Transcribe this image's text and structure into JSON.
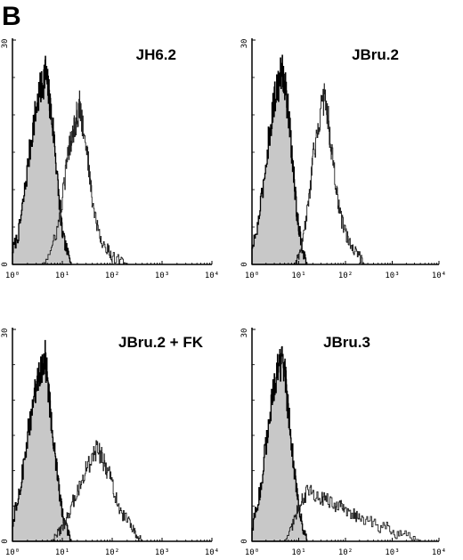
{
  "figure": {
    "panel_letter": "B"
  },
  "chart_data": [
    {
      "type": "area",
      "title": "JH6.2",
      "x_scale": "log",
      "xlim": [
        1,
        10000
      ],
      "ylim": [
        0,
        30
      ],
      "x_ticks": [
        "10⁰",
        "10¹",
        "10²",
        "10³",
        "10⁴"
      ],
      "y_ticks": [
        "0",
        "30"
      ],
      "grid": false,
      "series": [
        {
          "style": "filled",
          "x": [
            1.0,
            1.3,
            1.6,
            2.0,
            2.5,
            3.0,
            3.5,
            4.0,
            4.5,
            5.0,
            5.5,
            6.0,
            7.0,
            8.0,
            9.0,
            10.0,
            12.0,
            15.0
          ],
          "y": [
            2,
            4,
            8,
            13,
            18,
            21,
            23,
            24,
            26,
            24,
            22,
            20,
            16,
            11,
            7,
            4,
            2,
            0
          ]
        },
        {
          "style": "outline",
          "x": [
            4.0,
            6.0,
            8.0,
            10.0,
            12.0,
            14.0,
            16.0,
            18.0,
            20.0,
            22.0,
            25.0,
            30.0,
            35.0,
            40.0,
            50.0,
            60.0,
            80.0,
            100.0,
            150.0,
            200.0
          ],
          "y": [
            0,
            2,
            5,
            9,
            13,
            16,
            18,
            19,
            20,
            21,
            19,
            16,
            12,
            8,
            5,
            3,
            2,
            1,
            0.5,
            0
          ]
        }
      ]
    },
    {
      "type": "area",
      "title": "JBru.2",
      "x_scale": "log",
      "xlim": [
        1,
        10000
      ],
      "ylim": [
        0,
        30
      ],
      "x_ticks": [
        "10⁰",
        "10¹",
        "10²",
        "10³",
        "10⁴"
      ],
      "y_ticks": [
        "0",
        "30"
      ],
      "grid": false,
      "series": [
        {
          "style": "filled",
          "x": [
            1.0,
            1.3,
            1.6,
            2.0,
            2.5,
            3.0,
            3.5,
            4.0,
            4.5,
            5.0,
            5.5,
            6.0,
            7.0,
            8.0,
            9.0,
            10.0,
            12.0,
            15.0
          ],
          "y": [
            2,
            5,
            9,
            14,
            19,
            22,
            24,
            25,
            26,
            24,
            22,
            20,
            15,
            11,
            7,
            5,
            2,
            0
          ]
        },
        {
          "style": "outline",
          "x": [
            8.0,
            10.0,
            12.0,
            15.0,
            18.0,
            20.0,
            25.0,
            30.0,
            35.0,
            40.0,
            45.0,
            50.0,
            60.0,
            70.0,
            80.0,
            100.0,
            120.0,
            150.0,
            200.0,
            250.0
          ],
          "y": [
            0,
            1,
            3,
            7,
            11,
            14,
            18,
            21,
            22,
            21,
            18,
            15,
            11,
            8,
            6,
            4,
            3,
            2,
            1,
            0
          ]
        }
      ]
    },
    {
      "type": "area",
      "title": "JBru.2 + FK",
      "x_scale": "log",
      "xlim": [
        1,
        10000
      ],
      "ylim": [
        0,
        30
      ],
      "x_ticks": [
        "10⁰",
        "10¹",
        "10²",
        "10³",
        "10⁴"
      ],
      "y_ticks": [
        "0",
        "30"
      ],
      "grid": false,
      "series": [
        {
          "style": "filled",
          "x": [
            1.0,
            1.3,
            1.6,
            2.0,
            2.5,
            3.0,
            3.5,
            4.0,
            4.5,
            5.0,
            5.5,
            6.0,
            7.0,
            8.0,
            9.0,
            10.0,
            12.0,
            15.0
          ],
          "y": [
            3,
            6,
            10,
            15,
            19,
            22,
            24,
            25,
            26,
            23,
            20,
            17,
            13,
            9,
            6,
            4,
            2,
            0
          ]
        },
        {
          "style": "outline",
          "x": [
            6.0,
            8.0,
            10.0,
            12.0,
            15.0,
            20.0,
            25.0,
            30.0,
            40.0,
            50.0,
            60.0,
            70.0,
            80.0,
            100.0,
            120.0,
            150.0,
            200.0,
            250.0,
            300.0,
            400.0
          ],
          "y": [
            0,
            1,
            2,
            3,
            5,
            7,
            9,
            10,
            12,
            13,
            12,
            11,
            10,
            8,
            6,
            4,
            3,
            2,
            1,
            0
          ]
        }
      ]
    },
    {
      "type": "area",
      "title": "JBru.3",
      "x_scale": "log",
      "xlim": [
        1,
        10000
      ],
      "ylim": [
        0,
        30
      ],
      "x_ticks": [
        "10⁰",
        "10¹",
        "10²",
        "10³",
        "10⁴"
      ],
      "y_ticks": [
        "0",
        "30"
      ],
      "grid": false,
      "series": [
        {
          "style": "filled",
          "x": [
            1.0,
            1.3,
            1.6,
            2.0,
            2.5,
            3.0,
            3.5,
            4.0,
            4.5,
            5.0,
            5.5,
            6.0,
            7.0,
            8.0,
            9.0,
            10.0,
            12.0,
            15.0
          ],
          "y": [
            2,
            5,
            9,
            14,
            19,
            22,
            24,
            25,
            26,
            24,
            21,
            18,
            14,
            10,
            7,
            5,
            2,
            0
          ]
        },
        {
          "style": "outline",
          "x": [
            5.0,
            7.0,
            9.0,
            10.0,
            12.0,
            15.0,
            20.0,
            30.0,
            40.0,
            60.0,
            80.0,
            100.0,
            150.0,
            200.0,
            300.0,
            500.0,
            800.0,
            1200.0,
            2000.0,
            4000.0
          ],
          "y": [
            0,
            2,
            4,
            5,
            6,
            7,
            7,
            6,
            6,
            5,
            5,
            4,
            4,
            3,
            3,
            2,
            2,
            1,
            1,
            0
          ]
        }
      ]
    }
  ]
}
